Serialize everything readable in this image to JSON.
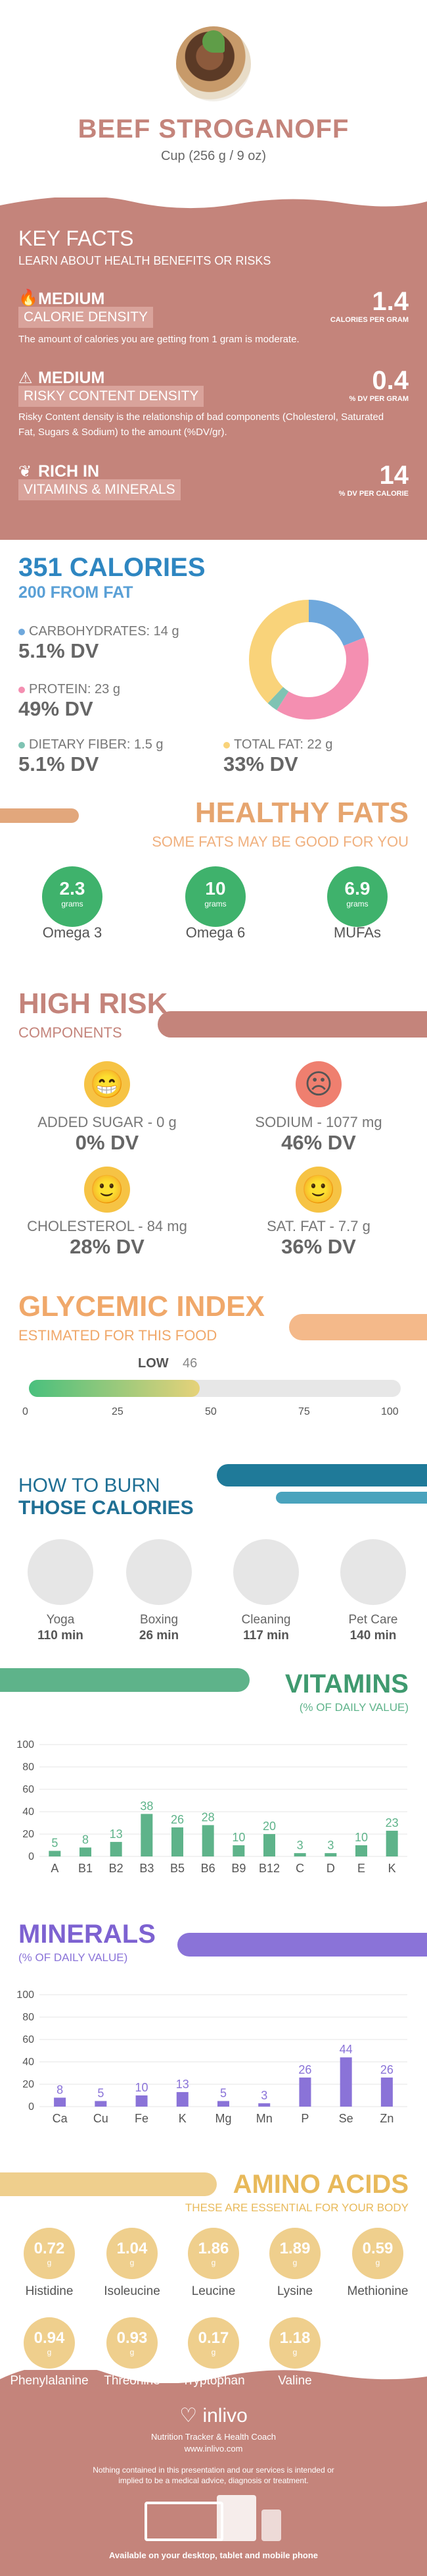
{
  "header": {
    "title": "BEEF STROGANOFF",
    "serving": "Cup (256 g / 9 oz)"
  },
  "key_facts": {
    "title": "KEY FACTS",
    "subtitle": "LEARN ABOUT HEALTH BENEFITS OR RISKS",
    "facts": [
      {
        "level": "MEDIUM",
        "name": "CALORIE DENSITY",
        "value": "1.4",
        "unit": "CALORIES PER GRAM",
        "desc": "The amount of calories you are getting from 1 gram is moderate."
      },
      {
        "level": "MEDIUM",
        "name": "RISKY CONTENT DENSITY",
        "value": "0.4",
        "unit": "% DV PER GRAM",
        "desc": "Risky Content density is the relationship of bad components (Cholesterol, Saturated Fat, Sugars & Sodium) to the amount (%DV/gr)."
      },
      {
        "level": "RICH  IN",
        "name": "VITAMINS & MINERALS",
        "value": "14",
        "unit": "% DV PER CALORIE",
        "desc": ""
      }
    ]
  },
  "calories": {
    "title": "351 CALORIES",
    "from_fat": "200 FROM FAT",
    "nutrients": [
      {
        "label": "CARBOHYDRATES: 14 g",
        "dv": "5.1% DV",
        "color": "#6fa8dc",
        "fraction": 0.19
      },
      {
        "label": "PROTEIN: 23 g",
        "dv": "49% DV",
        "color": "#f48fb1",
        "fraction": 0.4
      },
      {
        "label": "DIETARY FIBER: 1.5 g",
        "dv": "5.1% DV",
        "color": "#7fc3b3",
        "fraction": 0.03
      },
      {
        "label": "TOTAL FAT: 22 g",
        "dv": "33% DV",
        "color": "#f9d37a",
        "fraction": 0.38
      }
    ]
  },
  "healthy_fats": {
    "title": "HEALTHY FATS",
    "subtitle": "SOME FATS MAY BE GOOD FOR YOU",
    "items": [
      {
        "value": "2.3",
        "unit": "grams",
        "label": "Omega 3"
      },
      {
        "value": "10",
        "unit": "grams",
        "label": "Omega 6"
      },
      {
        "value": "6.9",
        "unit": "grams",
        "label": "MUFAs"
      }
    ]
  },
  "high_risk": {
    "title": "HIGH RISK",
    "subtitle": "COMPONENTS",
    "items": [
      {
        "label": "ADDED SUGAR - 0 g",
        "dv": "0% DV",
        "face": "😁",
        "color": "#f6c344"
      },
      {
        "label": "SODIUM - 1077 mg",
        "dv": "46% DV",
        "face": "☹",
        "color": "#ef7f6f"
      },
      {
        "label": "CHOLESTEROL - 84 mg",
        "dv": "28% DV",
        "face": "🙂",
        "color": "#f6c344"
      },
      {
        "label": "SAT. FAT - 7.7 g",
        "dv": "36% DV",
        "face": "🙂",
        "color": "#f6c344"
      }
    ]
  },
  "glycemic": {
    "title": "GLYCEMIC INDEX",
    "subtitle": "ESTIMATED FOR THIS FOOD",
    "level": "LOW",
    "value": "46",
    "fraction": 0.46,
    "ticks": [
      "0",
      "25",
      "50",
      "75",
      "100"
    ]
  },
  "burn": {
    "title_line1": "HOW TO BURN",
    "title_line2": "THOSE CALORIES",
    "items": [
      {
        "name": "Yoga",
        "minutes": "110 min"
      },
      {
        "name": "Boxing",
        "minutes": "26 min"
      },
      {
        "name": "Cleaning",
        "minutes": "117 min"
      },
      {
        "name": "Pet Care",
        "minutes": "140 min"
      }
    ]
  },
  "vitamins": {
    "title": "VITAMINS",
    "subtitle": "(% OF DAILY VALUE)",
    "chart_data": {
      "type": "bar",
      "categories": [
        "A",
        "B1",
        "B2",
        "B3",
        "B5",
        "B6",
        "B9",
        "B12",
        "C",
        "D",
        "E",
        "K"
      ],
      "values": [
        5,
        8,
        13,
        38,
        26,
        28,
        10,
        20,
        3,
        3,
        10,
        23
      ],
      "y_ticks": [
        "0",
        "20",
        "40",
        "60",
        "80",
        "100"
      ],
      "ylim": [
        0,
        100
      ],
      "color": "#5eb38a"
    }
  },
  "minerals": {
    "title": "MINERALS",
    "subtitle": "(% OF DAILY VALUE)",
    "chart_data": {
      "type": "bar",
      "categories": [
        "Ca",
        "Cu",
        "Fe",
        "K",
        "Mg",
        "Mn",
        "P",
        "Se",
        "Zn"
      ],
      "values": [
        8,
        5,
        10,
        13,
        5,
        3,
        26,
        44,
        26
      ],
      "y_ticks": [
        "0",
        "20",
        "40",
        "60",
        "80",
        "100"
      ],
      "ylim": [
        0,
        100
      ],
      "color": "#8a73d8"
    }
  },
  "amino": {
    "title": "AMINO ACIDS",
    "subtitle": "THESE ARE ESSENTIAL FOR YOUR BODY",
    "items": [
      {
        "value": "0.72",
        "unit": "g",
        "label": "Histidine"
      },
      {
        "value": "1.04",
        "unit": "g",
        "label": "Isoleucine"
      },
      {
        "value": "1.86",
        "unit": "g",
        "label": "Leucine"
      },
      {
        "value": "1.89",
        "unit": "g",
        "label": "Lysine"
      },
      {
        "value": "0.59",
        "unit": "g",
        "label": "Methionine"
      },
      {
        "value": "0.94",
        "unit": "g",
        "label": "Phenylalanine"
      },
      {
        "value": "0.93",
        "unit": "g",
        "label": "Threonine"
      },
      {
        "value": "0.17",
        "unit": "g",
        "label": "Tryptophan"
      },
      {
        "value": "1.18",
        "unit": "g",
        "label": "Valine"
      }
    ]
  },
  "footer": {
    "brand": "inlivo",
    "tagline": "Nutrition Tracker & Health Coach",
    "url": "www.inlivo.com",
    "disclaimer": "Nothing contained in this presentation and our services is intended or implied to be a medical advice, diagnosis or treatment.",
    "available": "Available on your desktop, tablet and mobile phone"
  }
}
